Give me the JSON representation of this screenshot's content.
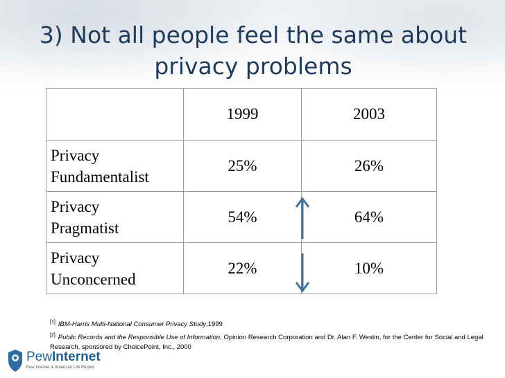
{
  "slide": {
    "title_line1": "3) Not all people feel the same about",
    "title_line2": "privacy problems"
  },
  "table": {
    "headers": [
      "",
      "1999",
      "2003"
    ],
    "rows": [
      {
        "label_line1": "Privacy",
        "label_line2": "Fundamentalist",
        "v1999": "25%",
        "v2003": "26%"
      },
      {
        "label_line1": "Privacy",
        "label_line2": "Pragmatist",
        "v1999": "54%",
        "v2003": "64%"
      },
      {
        "label_line1": "Privacy",
        "label_line2": "Unconcerned",
        "v1999": "22%",
        "v2003": "10%"
      }
    ]
  },
  "annotations": {
    "up_arrow": "arrow-up-icon",
    "down_arrow": "arrow-down-icon",
    "arrow_color": "#3f6f9f"
  },
  "footnotes": {
    "n1_marker": "[1]",
    "n1_title": "IBM-Harris Multi-National Consumer Privacy Study",
    "n1_rest": ",1999",
    "n2_marker": "[2]",
    "n2_title": "Public Records and the Responsible Use of Information",
    "n2_rest": ", Opinion Research Corporation and Dr. Alan F. Westin, for the Center for Social and Legal Research, sponsored by ChoicePoint, Inc., 2000"
  },
  "logo": {
    "pew": "Pew",
    "internet": "Internet",
    "tagline": "Pew Internet & American Life Project"
  }
}
